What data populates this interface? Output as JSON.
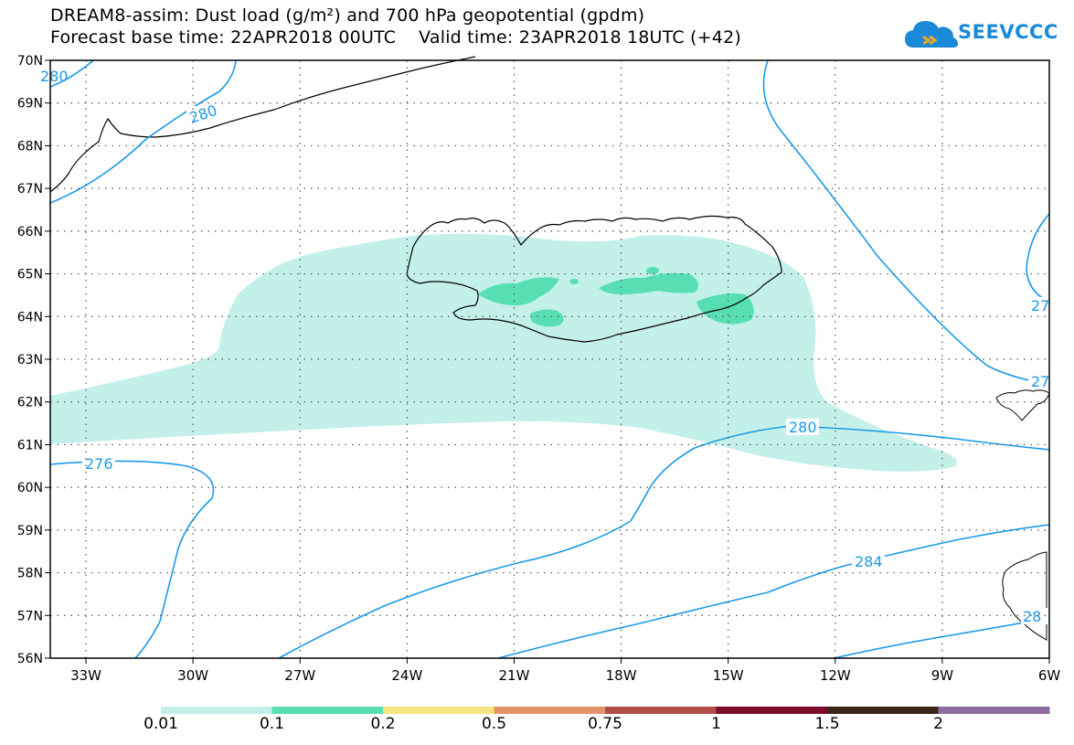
{
  "title": {
    "line1": "DREAM8-assim: Dust load (g/m²) and 700 hPa geopotential (gpdm)",
    "line2": "Forecast base time: 22APR2018 00UTC    Valid time: 23APR2018 18UTC (+42)"
  },
  "logo": {
    "text": "SEEVCCC",
    "icon": "cloud-icon"
  },
  "map": {
    "lon_labels": [
      "33W",
      "30W",
      "27W",
      "24W",
      "21W",
      "18W",
      "15W",
      "12W",
      "9W",
      "6W"
    ],
    "lat_labels": [
      "70N",
      "69N",
      "68N",
      "67N",
      "66N",
      "65N",
      "64N",
      "63N",
      "62N",
      "61N",
      "60N",
      "59N",
      "58N",
      "57N",
      "56N"
    ],
    "lon_range": [
      -34.0,
      -6.0
    ],
    "lat_range": [
      56,
      70
    ],
    "gridlines": "dotted",
    "contour_color": "#1a9be8",
    "contour_labels": [
      "280",
      "276",
      "280",
      "284",
      "27",
      "27",
      "28",
      "280"
    ]
  },
  "legend": {
    "thresholds": [
      "0.01",
      "0.1",
      "0.2",
      "0.5",
      "0.75",
      "1",
      "1.5",
      "2"
    ],
    "colors": [
      "#c4f0ea",
      "#57dfb3",
      "#f6e67f",
      "#e4946a",
      "#b24d4a",
      "#7d0c2b",
      "#3a2519",
      "#8f6c9e"
    ]
  }
}
